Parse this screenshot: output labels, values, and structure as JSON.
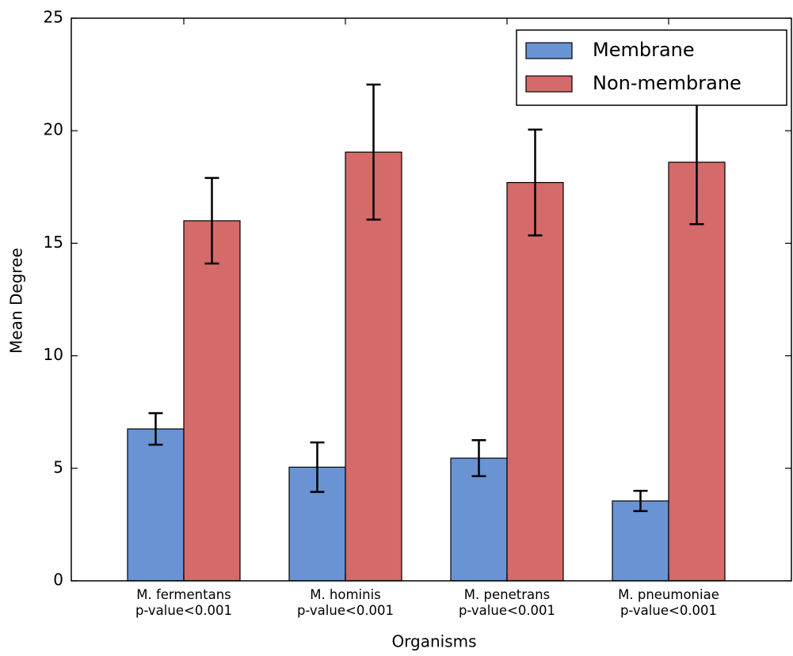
{
  "chart_data": {
    "type": "bar",
    "xlabel": "Organisms",
    "ylabel": "Mean Degree",
    "categories": [
      "M. fermentans\np-value<0.001",
      "M. hominis\np-value<0.001",
      "M. penetrans\np-value<0.001",
      "M. pneumoniae\np-value<0.001"
    ],
    "series": [
      {
        "name": "Membrane",
        "color": "#6a93d4",
        "values": [
          6.75,
          5.05,
          5.45,
          3.55
        ],
        "errors": [
          0.7,
          1.1,
          0.8,
          0.45
        ]
      },
      {
        "name": "Non-membrane",
        "color": "#d46a6a",
        "values": [
          16.0,
          19.05,
          17.7,
          18.6
        ],
        "errors": [
          1.9,
          3.0,
          2.35,
          2.75
        ]
      }
    ],
    "ylim": [
      0,
      25
    ],
    "yticks": [
      0,
      5,
      10,
      15,
      20,
      25
    ],
    "legend": "upper right"
  }
}
